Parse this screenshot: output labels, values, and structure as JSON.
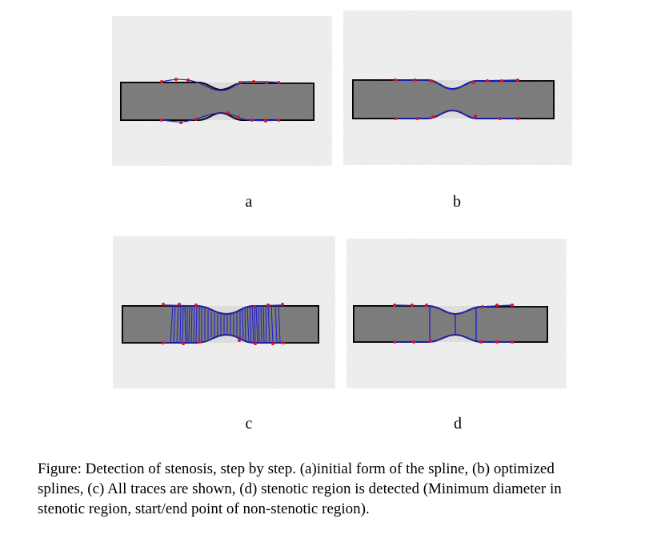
{
  "figure": {
    "panels": [
      {
        "id": "a",
        "label": "a"
      },
      {
        "id": "b",
        "label": "b"
      },
      {
        "id": "c",
        "label": "c"
      },
      {
        "id": "d",
        "label": "d"
      }
    ],
    "caption_lines": [
      "Figure: Detection of stenosis, step by step. (a)initial form of the spline, (b) optimized",
      "splines, (c) All traces are shown, (d) stenotic region is detected (Minimum diameter in",
      "stenotic  region, start/end point of non-stenotic region)."
    ],
    "colors": {
      "background_noise": "#e8e8e8",
      "vessel_fill": "#7a7a7a",
      "vessel_outline": "#000000",
      "spline": "#1f1fd0",
      "control_point": "#e0102a"
    }
  }
}
